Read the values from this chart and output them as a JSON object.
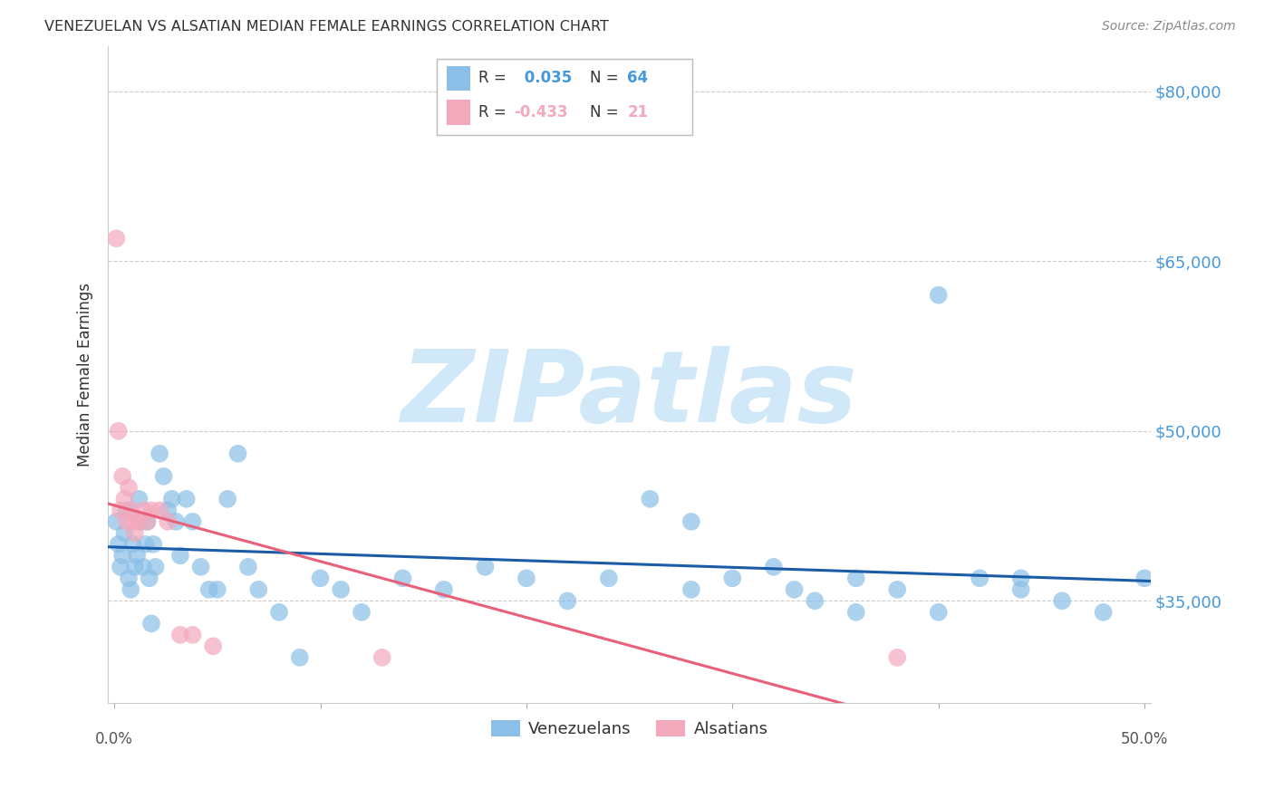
{
  "title": "VENEZUELAN VS ALSATIAN MEDIAN FEMALE EARNINGS CORRELATION CHART",
  "source": "Source: ZipAtlas.com",
  "ylabel": "Median Female Earnings",
  "yticks": [
    35000,
    50000,
    65000,
    80000
  ],
  "ytick_labels": [
    "$35,000",
    "$50,000",
    "$65,000",
    "$80,000"
  ],
  "ymin": 26000,
  "ymax": 84000,
  "xmin": -0.003,
  "xmax": 0.503,
  "venezuelan_color": "#8bbfe8",
  "alsatian_color": "#f4a8bc",
  "trend_venezuelan_color": "#1a5ca8",
  "trend_alsatian_color": "#e8607a",
  "background_color": "#ffffff",
  "grid_color": "#cccccc",
  "title_color": "#333333",
  "axis_label_color": "#4499dd",
  "watermark_color": "#d0e8f8",
  "watermark_text": "ZIPatlas",
  "ven_R": 0.035,
  "ven_N": 64,
  "als_R": -0.433,
  "als_N": 21,
  "venezuelan_x": [
    0.001,
    0.002,
    0.003,
    0.004,
    0.005,
    0.006,
    0.007,
    0.008,
    0.009,
    0.01,
    0.011,
    0.012,
    0.013,
    0.014,
    0.015,
    0.016,
    0.017,
    0.018,
    0.019,
    0.02,
    0.022,
    0.024,
    0.026,
    0.028,
    0.03,
    0.032,
    0.035,
    0.038,
    0.042,
    0.046,
    0.05,
    0.055,
    0.06,
    0.065,
    0.07,
    0.08,
    0.09,
    0.1,
    0.11,
    0.12,
    0.14,
    0.16,
    0.18,
    0.2,
    0.22,
    0.24,
    0.26,
    0.28,
    0.3,
    0.33,
    0.36,
    0.38,
    0.4,
    0.42,
    0.44,
    0.46,
    0.48,
    0.5,
    0.28,
    0.32,
    0.34,
    0.36,
    0.4,
    0.44
  ],
  "venezuelan_y": [
    42000,
    40000,
    38000,
    39000,
    41000,
    43000,
    37000,
    36000,
    40000,
    38000,
    39000,
    44000,
    42000,
    38000,
    40000,
    42000,
    37000,
    33000,
    40000,
    38000,
    48000,
    46000,
    43000,
    44000,
    42000,
    39000,
    44000,
    42000,
    38000,
    36000,
    36000,
    44000,
    48000,
    38000,
    36000,
    34000,
    30000,
    37000,
    36000,
    34000,
    37000,
    36000,
    38000,
    37000,
    35000,
    37000,
    44000,
    42000,
    37000,
    36000,
    37000,
    36000,
    62000,
    37000,
    36000,
    35000,
    34000,
    37000,
    36000,
    38000,
    35000,
    34000,
    34000,
    37000
  ],
  "alsatian_x": [
    0.001,
    0.002,
    0.003,
    0.004,
    0.005,
    0.006,
    0.007,
    0.008,
    0.009,
    0.01,
    0.012,
    0.014,
    0.016,
    0.018,
    0.022,
    0.026,
    0.032,
    0.038,
    0.048,
    0.13,
    0.38
  ],
  "alsatian_y": [
    67000,
    50000,
    43000,
    46000,
    44000,
    42000,
    45000,
    43000,
    42000,
    41000,
    42000,
    43000,
    42000,
    43000,
    43000,
    42000,
    32000,
    32000,
    31000,
    30000,
    30000
  ]
}
